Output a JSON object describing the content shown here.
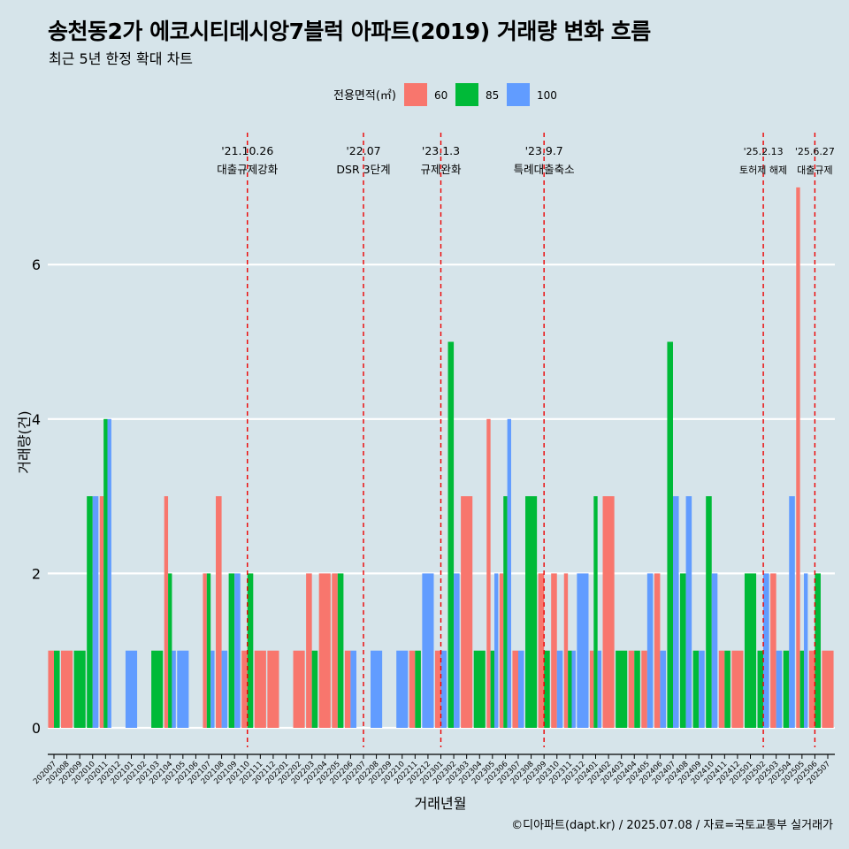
{
  "header": {
    "title": "송천동2가 에코시티데시앙7블럭 아파트(2019) 거래량 변화 흐름",
    "subtitle": "최근 5년 한정 확대 차트"
  },
  "caption": "©디아파트(dapt.kr) / 2025.07.08 / 자료=국토교통부 실거래가",
  "chart_data": {
    "type": "bar",
    "xlabel": "거래년월",
    "ylabel": "거래량(건)",
    "ylim": [
      0,
      7
    ],
    "yticks": [
      0,
      2,
      4,
      6
    ],
    "grid": true,
    "legend": {
      "title": "전용면적(㎡)",
      "position": "top",
      "entries": [
        {
          "name": "60",
          "color": "#f8766d"
        },
        {
          "name": "85",
          "color": "#00ba38"
        },
        {
          "name": "100",
          "color": "#619cff"
        }
      ]
    },
    "categories": [
      "202007",
      "202008",
      "202009",
      "202010",
      "202011",
      "202012",
      "202101",
      "202102",
      "202103",
      "202104",
      "202105",
      "202106",
      "202107",
      "202108",
      "202109",
      "202110",
      "202111",
      "202112",
      "202201",
      "202202",
      "202203",
      "202204",
      "202205",
      "202206",
      "202207",
      "202208",
      "202209",
      "202210",
      "202211",
      "202212",
      "202301",
      "202302",
      "202303",
      "202304",
      "202305",
      "202306",
      "202307",
      "202308",
      "202309",
      "202310",
      "202311",
      "202312",
      "202401",
      "202402",
      "202403",
      "202404",
      "202405",
      "202406",
      "202407",
      "202408",
      "202409",
      "202410",
      "202411",
      "202412",
      "202501",
      "202502",
      "202503",
      "202504",
      "202505",
      "202506",
      "202507"
    ],
    "series": [
      {
        "name": "60",
        "color": "#f8766d",
        "values": [
          1,
          1,
          0,
          0,
          3,
          0,
          0,
          0,
          0,
          3,
          0,
          0,
          2,
          3,
          0,
          1,
          1,
          1,
          0,
          1,
          2,
          2,
          2,
          1,
          0,
          0,
          0,
          0,
          1,
          0,
          1,
          0,
          3,
          0,
          4,
          2,
          1,
          0,
          2,
          2,
          2,
          0,
          1,
          3,
          0,
          1,
          1,
          2,
          0,
          0,
          0,
          0,
          1,
          1,
          0,
          0,
          2,
          0,
          7,
          1,
          1
        ]
      },
      {
        "name": "85",
        "color": "#00ba38",
        "values": [
          1,
          0,
          1,
          3,
          4,
          0,
          0,
          0,
          1,
          2,
          0,
          0,
          2,
          0,
          2,
          2,
          0,
          0,
          0,
          0,
          1,
          0,
          2,
          0,
          0,
          0,
          0,
          0,
          1,
          0,
          0,
          5,
          0,
          1,
          1,
          3,
          0,
          3,
          1,
          0,
          1,
          0,
          3,
          0,
          1,
          1,
          0,
          0,
          5,
          2,
          1,
          3,
          1,
          0,
          2,
          1,
          0,
          1,
          1,
          2,
          0
        ]
      },
      {
        "name": "100",
        "color": "#619cff",
        "values": [
          0,
          0,
          0,
          3,
          4,
          0,
          1,
          0,
          0,
          1,
          1,
          0,
          1,
          1,
          2,
          0,
          0,
          0,
          0,
          0,
          0,
          0,
          0,
          1,
          0,
          1,
          0,
          1,
          0,
          2,
          1,
          2,
          0,
          0,
          2,
          4,
          1,
          0,
          0,
          1,
          1,
          2,
          1,
          0,
          0,
          0,
          2,
          1,
          3,
          3,
          1,
          2,
          0,
          0,
          0,
          2,
          1,
          3,
          2,
          0,
          0
        ]
      }
    ],
    "annotations": [
      {
        "x": "202110",
        "line1": "'21.10.26",
        "line2": "대출규제강화"
      },
      {
        "x": "202207",
        "line1": "'22.07",
        "line2": "DSR 3단계"
      },
      {
        "x": "202301",
        "line1": "'23.1.3",
        "line2": "규제완화"
      },
      {
        "x": "202309",
        "line1": "'23.9.7",
        "line2": "특례대출축소"
      },
      {
        "x": "202502",
        "line1": "'25.2.13",
        "line2": "토허제 해제"
      },
      {
        "x": "202506",
        "line1": "'25.6.27",
        "line2": "대출규제"
      }
    ]
  }
}
